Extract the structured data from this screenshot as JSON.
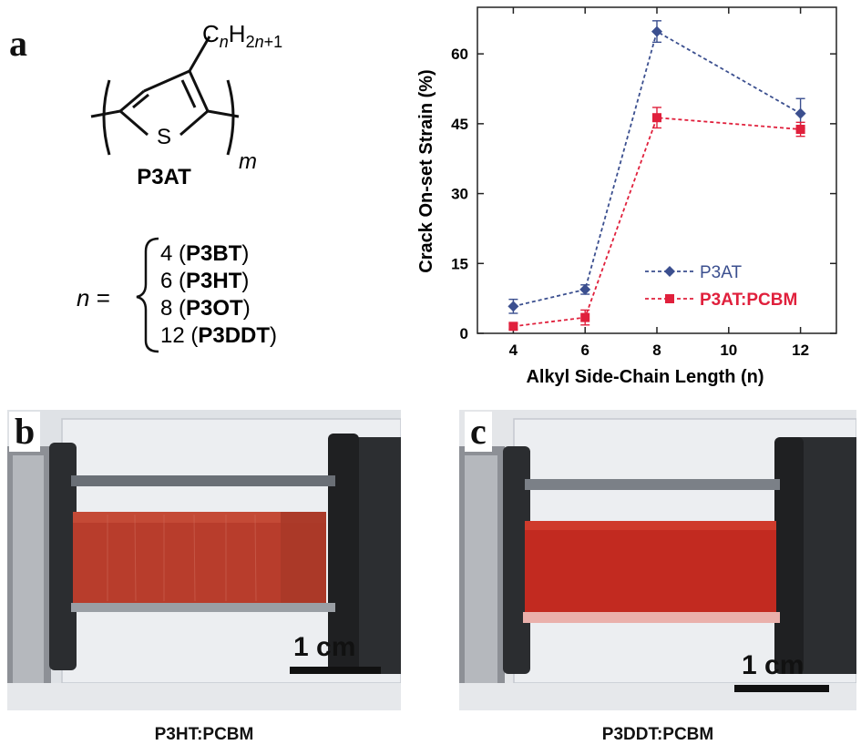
{
  "panels": {
    "a": "a",
    "b": "b",
    "c": "c"
  },
  "structure": {
    "substituent_C": "C",
    "substituent_n": "n",
    "substituent_H": "H",
    "substituent_sub": "2n+1",
    "substituent_sub_n": "n",
    "substituent_sub_rest": "+1",
    "substituent_sub_2": "2",
    "sulfur": "S",
    "repeat": "m",
    "name": "P3AT",
    "n_equals_n": "n",
    "n_equals": " =",
    "options": [
      {
        "n": "4",
        "name": "P3BT"
      },
      {
        "n": "6",
        "name": "P3HT"
      },
      {
        "n": "8",
        "name": "P3OT"
      },
      {
        "n": "12",
        "name": "P3DDT"
      }
    ]
  },
  "chart_data": {
    "type": "line",
    "title": "",
    "xlabel": "Alkyl Side-Chain Length (n)",
    "ylabel": "Crack On-set Strain (%)",
    "xlim": [
      3,
      13
    ],
    "ylim": [
      0,
      70
    ],
    "xticks": [
      4,
      6,
      8,
      10,
      12
    ],
    "yticks": [
      0,
      15,
      30,
      45,
      60
    ],
    "grid": false,
    "legend_position": "bottom-right",
    "series": [
      {
        "name": "P3AT",
        "color": "#3b4f8f",
        "marker": "diamond",
        "x": [
          4,
          6,
          8,
          12
        ],
        "y": [
          5.8,
          9.4,
          64.8,
          47.2
        ],
        "err": [
          1.5,
          1.0,
          2.3,
          3.2
        ]
      },
      {
        "name": "P3AT:PCBM",
        "color": "#e0203c",
        "marker": "square",
        "x": [
          4,
          6,
          8,
          12
        ],
        "y": [
          1.5,
          3.4,
          46.3,
          43.8
        ],
        "err": [
          0.6,
          1.6,
          2.2,
          1.5
        ]
      }
    ]
  },
  "photos": {
    "b": {
      "scale_label": "1 cm",
      "caption": "P3HT:PCBM"
    },
    "c": {
      "scale_label": "1 cm",
      "caption": "P3DDT:PCBM"
    }
  }
}
